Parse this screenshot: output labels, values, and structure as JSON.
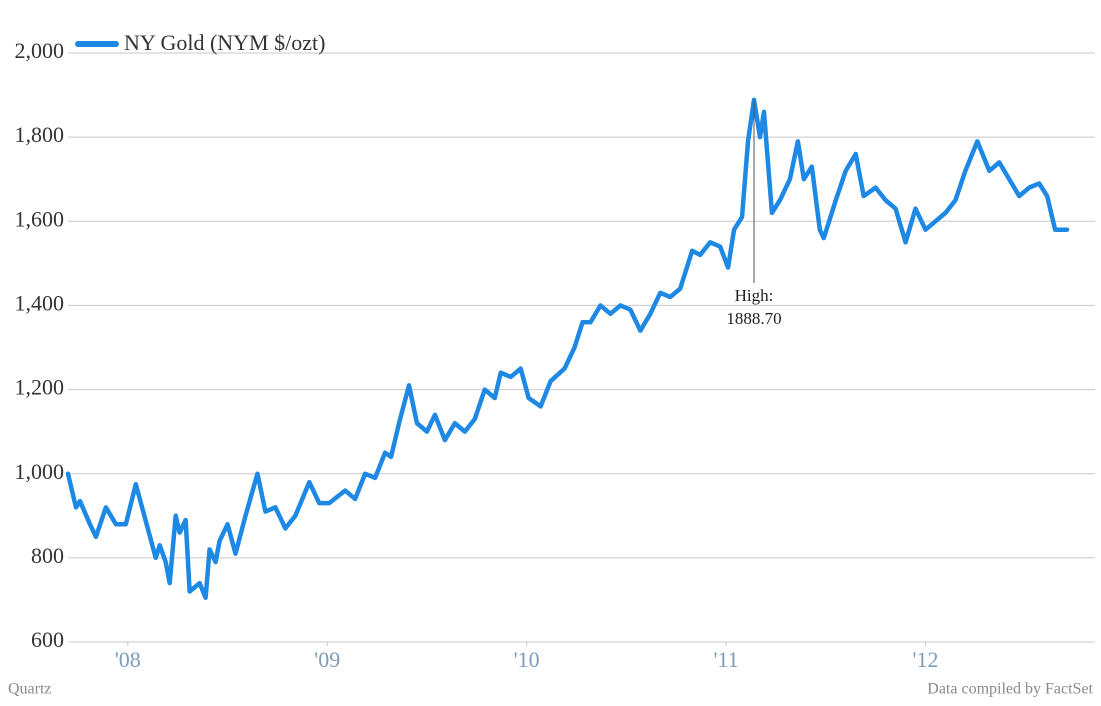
{
  "chart_data": {
    "type": "line",
    "legend": "top-left",
    "grid": true,
    "annotation": [
      "High:",
      "1888.70"
    ],
    "footer_left": "Quartz",
    "footer_right": "Data compiled by FactSet",
    "x": [
      2007.7,
      2007.74,
      2007.76,
      2007.81,
      2007.84,
      2007.89,
      2007.94,
      2007.99,
      2008.04,
      2008.06,
      2008.1,
      2008.14,
      2008.16,
      2008.19,
      2008.21,
      2008.24,
      2008.26,
      2008.29,
      2008.31,
      2008.36,
      2008.39,
      2008.41,
      2008.44,
      2008.46,
      2008.5,
      2008.54,
      2008.59,
      2008.65,
      2008.69,
      2008.74,
      2008.79,
      2008.84,
      2008.91,
      2008.96,
      2009.01,
      2009.09,
      2009.14,
      2009.19,
      2009.24,
      2009.29,
      2009.32,
      2009.36,
      2009.41,
      2009.45,
      2009.5,
      2009.54,
      2009.59,
      2009.64,
      2009.69,
      2009.74,
      2009.79,
      2009.84,
      2009.87,
      2009.92,
      2009.97,
      2010.01,
      2010.07,
      2010.12,
      2010.19,
      2010.24,
      2010.28,
      2010.32,
      2010.37,
      2010.42,
      2010.47,
      2010.52,
      2010.57,
      2010.62,
      2010.67,
      2010.72,
      2010.77,
      2010.83,
      2010.87,
      2010.92,
      2010.97,
      2011.01,
      2011.04,
      2011.08,
      2011.11,
      2011.14,
      2011.17,
      2011.19,
      2011.23,
      2011.27,
      2011.32,
      2011.36,
      2011.39,
      2011.43,
      2011.47,
      2011.49,
      2011.55,
      2011.6,
      2011.65,
      2011.69,
      2011.75,
      2011.8,
      2011.85,
      2011.9,
      2011.95,
      2012.0,
      2012.05,
      2012.1,
      2012.15,
      2012.2,
      2012.26,
      2012.32,
      2012.37,
      2012.42,
      2012.47,
      2012.52,
      2012.57,
      2012.61,
      2012.65,
      2012.71
    ],
    "series": [
      {
        "name": "NY Gold (NYM $/ozt)",
        "color": "#1e88e5",
        "values": [
          1000,
          920,
          935,
          880,
          850,
          920,
          880,
          880,
          975,
          940,
          870,
          800,
          830,
          790,
          740,
          900,
          860,
          890,
          720,
          740,
          705,
          820,
          790,
          840,
          880,
          810,
          900,
          1000,
          910,
          920,
          870,
          900,
          980,
          930,
          930,
          960,
          940,
          1000,
          990,
          1050,
          1040,
          1120,
          1210,
          1120,
          1100,
          1140,
          1080,
          1120,
          1100,
          1130,
          1200,
          1180,
          1240,
          1230,
          1250,
          1180,
          1160,
          1220,
          1250,
          1300,
          1360,
          1360,
          1400,
          1380,
          1400,
          1390,
          1340,
          1380,
          1430,
          1420,
          1440,
          1530,
          1520,
          1550,
          1540,
          1490,
          1580,
          1610,
          1790,
          1888.7,
          1800,
          1860,
          1620,
          1650,
          1700,
          1790,
          1700,
          1730,
          1580,
          1560,
          1650,
          1720,
          1760,
          1660,
          1680,
          1650,
          1630,
          1550,
          1630,
          1580,
          1600,
          1620,
          1650,
          1720,
          1790,
          1720,
          1740,
          1700,
          1660,
          1680,
          1690,
          1660,
          1580,
          1580
        ]
      }
    ],
    "xlim": [
      2007.7,
      2012.85
    ],
    "xticks": [
      {
        "value": 2008,
        "label": "'08"
      },
      {
        "value": 2009,
        "label": "'09"
      },
      {
        "value": 2010,
        "label": "'10"
      },
      {
        "value": 2011,
        "label": "'11"
      },
      {
        "value": 2012,
        "label": "'12"
      }
    ],
    "ylim": [
      600,
      2000
    ],
    "yticks": [
      600,
      800,
      {
        "value": 1000,
        "label": "1,000"
      },
      {
        "value": 1200,
        "label": "1,200"
      },
      {
        "value": 1400,
        "label": "1,400"
      },
      {
        "value": 1600,
        "label": "1,600"
      },
      {
        "value": 1800,
        "label": "1,800"
      },
      {
        "value": 2000,
        "label": "2,000"
      }
    ]
  }
}
